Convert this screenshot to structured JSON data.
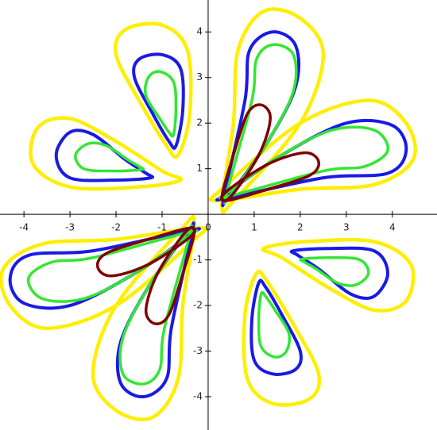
{
  "chart_data": {
    "type": "contour",
    "xlim": [
      -4.52,
      4.97
    ],
    "ylim": [
      -4.73,
      4.7
    ],
    "xticks": [
      -4,
      -3,
      -2,
      -1,
      0,
      1,
      2,
      3,
      4
    ],
    "yticks": [
      -4,
      -3,
      -2,
      -1,
      1,
      2,
      3,
      4
    ],
    "series": [
      {
        "color": "#ffee00",
        "curves": [
          {
            "x": [
              0.3,
              0.55,
              0.65,
              1.2,
              2.0,
              2.5,
              2.0,
              0.6
            ],
            "y": [
              0.2,
              2.0,
              3.6,
              4.45,
              4.3,
              3.5,
              2.0,
              0.35
            ]
          },
          {
            "x": [
              0.2,
              2.0,
              3.6,
              4.45,
              4.3,
              3.5,
              2.0,
              0.35
            ],
            "y": [
              0.3,
              0.55,
              0.65,
              1.2,
              2.0,
              2.5,
              2.0,
              0.6
            ]
          },
          {
            "x": [
              -0.3,
              -0.55,
              -0.65,
              -1.2,
              -2.0,
              -2.5,
              -2.0,
              -0.6
            ],
            "y": [
              -0.2,
              -2.0,
              -3.6,
              -4.45,
              -4.3,
              -3.5,
              -2.0,
              -0.35
            ]
          },
          {
            "x": [
              -0.2,
              -2.0,
              -3.6,
              -4.45,
              -4.3,
              -3.5,
              -2.0,
              -0.35
            ],
            "y": [
              -0.3,
              -0.55,
              -0.65,
              -1.2,
              -2.0,
              -2.5,
              -2.0,
              -0.6
            ]
          },
          {
            "x": [
              -0.65,
              -0.4,
              -0.45,
              -1.0,
              -1.8,
              -2.0,
              -1.5,
              -0.9
            ],
            "y": [
              1.3,
              2.2,
              3.6,
              4.15,
              4.05,
              3.5,
              2.5,
              1.5
            ]
          },
          {
            "x": [
              -0.6,
              -1.5,
              -3.0,
              -3.8,
              -3.7,
              -3.0,
              -2.0,
              -1.0
            ],
            "y": [
              0.75,
              0.6,
              0.6,
              1.1,
              1.9,
              2.1,
              1.6,
              0.95
            ]
          },
          {
            "x": [
              1.05,
              0.8,
              0.85,
              1.4,
              2.2,
              2.4,
              1.9,
              1.3
            ],
            "y": [
              -1.3,
              -2.2,
              -3.6,
              -4.15,
              -4.05,
              -3.5,
              -2.5,
              -1.5
            ]
          },
          {
            "x": [
              1.2,
              2.1,
              3.6,
              4.4,
              4.3,
              3.6,
              2.6,
              1.6
            ],
            "y": [
              -0.75,
              -0.6,
              -0.6,
              -1.1,
              -1.9,
              -2.1,
              -1.6,
              -0.95
            ]
          }
        ]
      },
      {
        "color": "#1a1ae6",
        "curves": [
          {
            "x": [
              0.35,
              0.8,
              0.9,
              1.4,
              1.9,
              1.9,
              1.3,
              0.45
            ],
            "y": [
              0.4,
              2.5,
              3.6,
              4.0,
              3.7,
              2.8,
              1.6,
              0.4
            ]
          },
          {
            "x": [
              0.4,
              2.5,
              3.9,
              4.3,
              4.0,
              3.0,
              1.6,
              0.4
            ],
            "y": [
              0.35,
              0.8,
              0.9,
              1.4,
              1.95,
              2.0,
              1.3,
              0.45
            ]
          },
          {
            "x": [
              -0.35,
              -0.8,
              -0.9,
              -1.4,
              -1.9,
              -1.9,
              -1.3,
              -0.45
            ],
            "y": [
              -0.4,
              -2.5,
              -3.6,
              -4.0,
              -3.7,
              -2.8,
              -1.6,
              -0.4
            ]
          },
          {
            "x": [
              -0.4,
              -2.5,
              -3.9,
              -4.3,
              -4.0,
              -3.0,
              -1.6,
              -0.4
            ],
            "y": [
              -0.35,
              -0.8,
              -0.9,
              -1.4,
              -1.95,
              -2.0,
              -1.3,
              -0.45
            ]
          },
          {
            "x": [
              -0.7,
              -0.55,
              -0.6,
              -1.0,
              -1.5,
              -1.6,
              -1.2,
              -0.85
            ],
            "y": [
              1.5,
              2.3,
              3.2,
              3.5,
              3.4,
              3.0,
              2.2,
              1.6
            ]
          },
          {
            "x": [
              -1.25,
              -2.0,
              -3.0,
              -3.3,
              -3.0,
              -2.5,
              -1.8,
              -1.35
            ],
            "y": [
              0.8,
              0.75,
              0.8,
              1.3,
              1.8,
              1.75,
              1.2,
              0.9
            ]
          },
          {
            "x": [
              1.1,
              0.95,
              1.0,
              1.4,
              1.9,
              2.0,
              1.6,
              1.25
            ],
            "y": [
              -1.5,
              -2.3,
              -3.2,
              -3.5,
              -3.4,
              -3.0,
              -2.2,
              -1.6
            ]
          },
          {
            "x": [
              1.85,
              2.6,
              3.6,
              3.9,
              3.6,
              3.1,
              2.4,
              1.95
            ],
            "y": [
              -0.8,
              -0.75,
              -0.8,
              -1.3,
              -1.8,
              -1.75,
              -1.2,
              -0.9
            ]
          }
        ]
      },
      {
        "color": "#33e633",
        "curves": [
          {
            "x": [
              0.4,
              0.95,
              1.05,
              1.4,
              1.85,
              1.85,
              1.3,
              0.5
            ],
            "y": [
              0.45,
              2.5,
              3.4,
              3.72,
              3.5,
              2.7,
              1.6,
              0.45
            ]
          },
          {
            "x": [
              0.45,
              2.5,
              3.4,
              3.9,
              3.6,
              2.7,
              1.6,
              0.45
            ],
            "y": [
              0.4,
              0.95,
              1.05,
              1.4,
              1.85,
              1.85,
              1.3,
              0.5
            ]
          },
          {
            "x": [
              -0.4,
              -0.95,
              -1.05,
              -1.4,
              -1.85,
              -1.85,
              -1.3,
              -0.5
            ],
            "y": [
              -0.45,
              -2.5,
              -3.4,
              -3.72,
              -3.5,
              -2.7,
              -1.6,
              -0.45
            ]
          },
          {
            "x": [
              -0.45,
              -2.5,
              -3.4,
              -3.9,
              -3.6,
              -2.7,
              -1.6,
              -0.45
            ],
            "y": [
              -0.4,
              -0.95,
              -1.05,
              -1.4,
              -1.85,
              -1.85,
              -1.3,
              -0.5
            ]
          },
          {
            "x": [
              -0.75,
              -0.7,
              -0.75,
              -1.05,
              -1.3,
              -1.35,
              -1.05,
              -0.85
            ],
            "y": [
              1.75,
              2.3,
              2.9,
              3.13,
              3.0,
              2.6,
              2.1,
              1.8
            ]
          },
          {
            "x": [
              -1.45,
              -2.1,
              -2.7,
              -2.88,
              -2.6,
              -2.2,
              -1.75,
              -1.5
            ],
            "y": [
              0.98,
              0.95,
              1.0,
              1.3,
              1.55,
              1.5,
              1.2,
              1.05
            ]
          },
          {
            "x": [
              1.15,
              1.1,
              1.15,
              1.45,
              1.7,
              1.75,
              1.45,
              1.25
            ],
            "y": [
              -1.75,
              -2.3,
              -2.9,
              -3.13,
              -3.0,
              -2.6,
              -2.1,
              -1.8
            ]
          },
          {
            "x": [
              2.05,
              2.7,
              3.3,
              3.48,
              3.2,
              2.8,
              2.35,
              2.1
            ],
            "y": [
              -0.98,
              -0.95,
              -1.0,
              -1.3,
              -1.55,
              -1.5,
              -1.2,
              -1.05
            ]
          }
        ]
      },
      {
        "color": "#800000",
        "curves": [
          {
            "x": [
              0.3,
              0.55,
              0.85,
              1.15,
              1.35,
              1.1,
              0.5
            ],
            "y": [
              0.4,
              1.3,
              2.2,
              2.4,
              2.1,
              1.3,
              0.4
            ]
          },
          {
            "x": [
              0.4,
              1.3,
              2.2,
              2.4,
              2.1,
              1.3,
              0.4
            ],
            "y": [
              0.3,
              0.55,
              0.85,
              1.15,
              1.35,
              1.1,
              0.5
            ]
          },
          {
            "x": [
              -0.3,
              -0.55,
              -0.85,
              -1.15,
              -1.35,
              -1.1,
              -0.5
            ],
            "y": [
              -0.4,
              -1.3,
              -2.2,
              -2.4,
              -2.1,
              -1.3,
              -0.4
            ]
          },
          {
            "x": [
              -0.4,
              -1.3,
              -2.2,
              -2.4,
              -2.1,
              -1.3,
              -0.4
            ],
            "y": [
              -0.3,
              -0.55,
              -0.85,
              -1.15,
              -1.35,
              -1.1,
              -0.5
            ]
          }
        ]
      }
    ]
  }
}
